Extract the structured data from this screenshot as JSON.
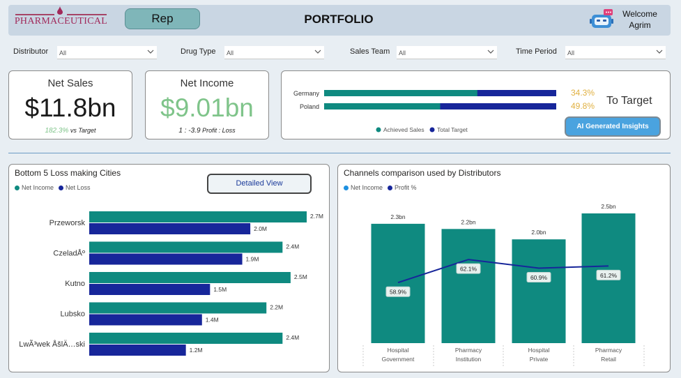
{
  "header": {
    "logo_text": "PHARMACEUTICAL",
    "role_button": "Rep",
    "title": "PORTFOLIO",
    "welcome_line1": "Welcome",
    "welcome_line2": "Agrim",
    "bot_icon": "chatbot-icon"
  },
  "filters": [
    {
      "label": "Distributor",
      "value": "All"
    },
    {
      "label": "Drug Type",
      "value": "All"
    },
    {
      "label": "Sales Team",
      "value": "All"
    },
    {
      "label": "Time Period",
      "value": "All"
    }
  ],
  "kpis": {
    "net_sales": {
      "title": "Net Sales",
      "value": "$11.8bn",
      "sub_value": "182.3%",
      "sub_label": "vs Target"
    },
    "net_income": {
      "title": "Net Income",
      "value": "$9.01bn",
      "sub_value": "1 : -3.9",
      "sub_label": "Profit : Loss"
    }
  },
  "target": {
    "title": "To Target",
    "button": "AI Generated Insights",
    "legend": [
      "Achieved Sales",
      "Total Target"
    ],
    "rows": [
      {
        "country": "Germany",
        "achieved_fraction": 0.66,
        "pct": "34.3%"
      },
      {
        "country": "Poland",
        "achieved_fraction": 0.5,
        "pct": "49.8%"
      }
    ]
  },
  "loss_panel": {
    "title": "Bottom 5 Loss making Cities",
    "button": "Detailed View",
    "legend": [
      "Net Income",
      "Net Loss"
    ]
  },
  "channels_panel": {
    "title": "Channels comparison used by Distributors",
    "legend": [
      "Net Income",
      "Profit %"
    ]
  },
  "colors": {
    "teal": "#0f8a80",
    "navy": "#17269a",
    "income_green": "#7fc48a",
    "pct_gold": "#e0b040",
    "header_bg": "#c9d6e3",
    "page_bg": "#e8eef3"
  },
  "chart_data": [
    {
      "type": "bar",
      "orientation": "horizontal",
      "categories": [
        "Przeworsk",
        "CzeladÅº",
        "Kutno",
        "Lubsko",
        "LwÃ³wek ÅšlÄ…ski"
      ],
      "series": [
        {
          "name": "Net Income",
          "values": [
            2.7,
            2.4,
            2.5,
            2.2,
            2.4
          ],
          "labels": [
            "2.7M",
            "2.4M",
            "2.5M",
            "2.2M",
            "2.4M"
          ]
        },
        {
          "name": "Net Loss",
          "values": [
            2.0,
            1.9,
            1.5,
            1.4,
            1.2
          ],
          "labels": [
            "2.0M",
            "1.9M",
            "1.5M",
            "1.4M",
            "1.2M"
          ]
        }
      ],
      "xlim": [
        0,
        2.7
      ]
    },
    {
      "type": "bar",
      "categories": [
        [
          "Hospital",
          "Government"
        ],
        [
          "Pharmacy",
          "Institution"
        ],
        [
          "Hospital",
          "Private"
        ],
        [
          "Pharmacy",
          "Retail"
        ]
      ],
      "series": [
        {
          "name": "Net Income",
          "values": [
            2.3,
            2.2,
            2.0,
            2.5
          ],
          "labels": [
            "2.3bn",
            "2.2bn",
            "2.0bn",
            "2.5bn"
          ]
        },
        {
          "name": "Profit %",
          "type": "line",
          "values": [
            58.9,
            62.1,
            60.9,
            61.2
          ],
          "labels": [
            "58.9%",
            "62.1%",
            "60.9%",
            "61.2%"
          ]
        }
      ],
      "ylim": [
        0,
        2.5
      ]
    }
  ]
}
